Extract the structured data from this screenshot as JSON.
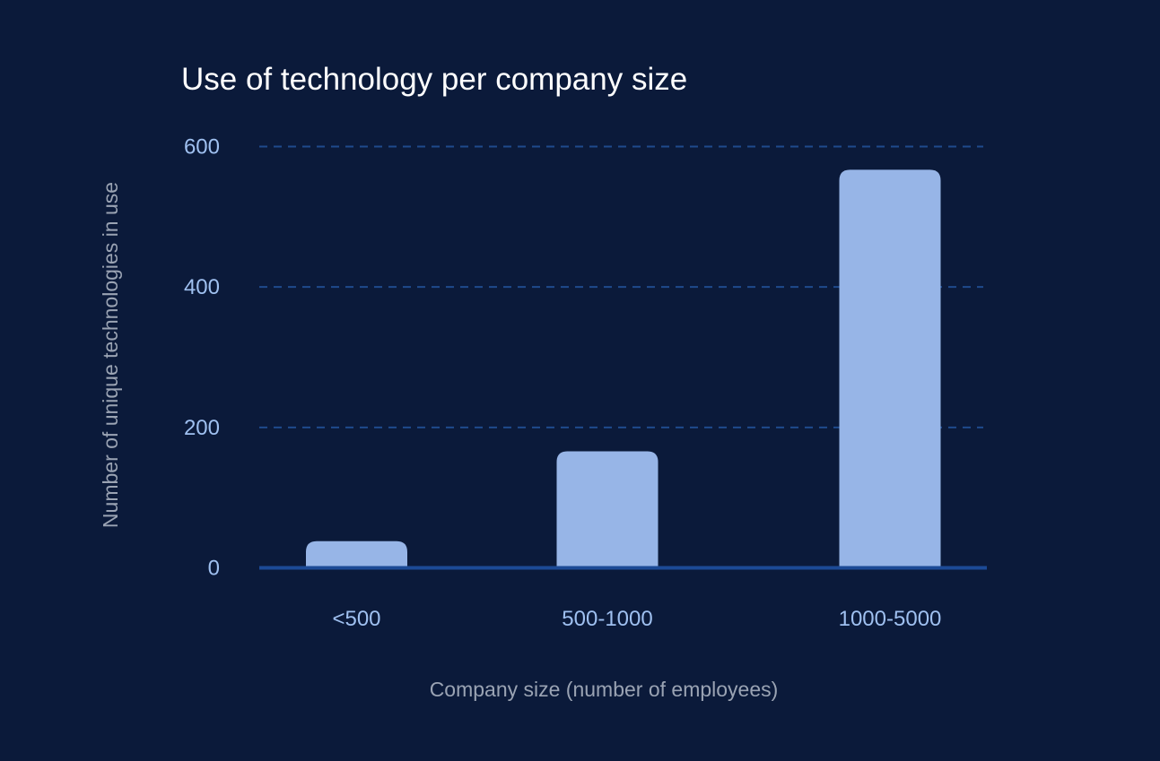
{
  "colors": {
    "background": "#0b1a3a",
    "title": "#ffffff",
    "tick_label": "#9fc0f0",
    "axis_title": "#9aa3b3",
    "bar": "#97b5e7",
    "grid": "#1f4a8c",
    "baseline": "#1c4a96"
  },
  "chart_data": {
    "type": "bar",
    "title": "Use of technology per company size",
    "xlabel": "Company size (number of employees)",
    "ylabel": "Number of unique technologies in use",
    "categories": [
      "<500",
      "500-1000",
      "1000-5000"
    ],
    "values": [
      38,
      166,
      567
    ],
    "ylim": [
      0,
      600
    ],
    "yticks": [
      0,
      200,
      400,
      600
    ],
    "ytick_labels": [
      "0",
      "200",
      "400",
      "600"
    ],
    "grid": "dashed horizontal",
    "legend": "none"
  }
}
